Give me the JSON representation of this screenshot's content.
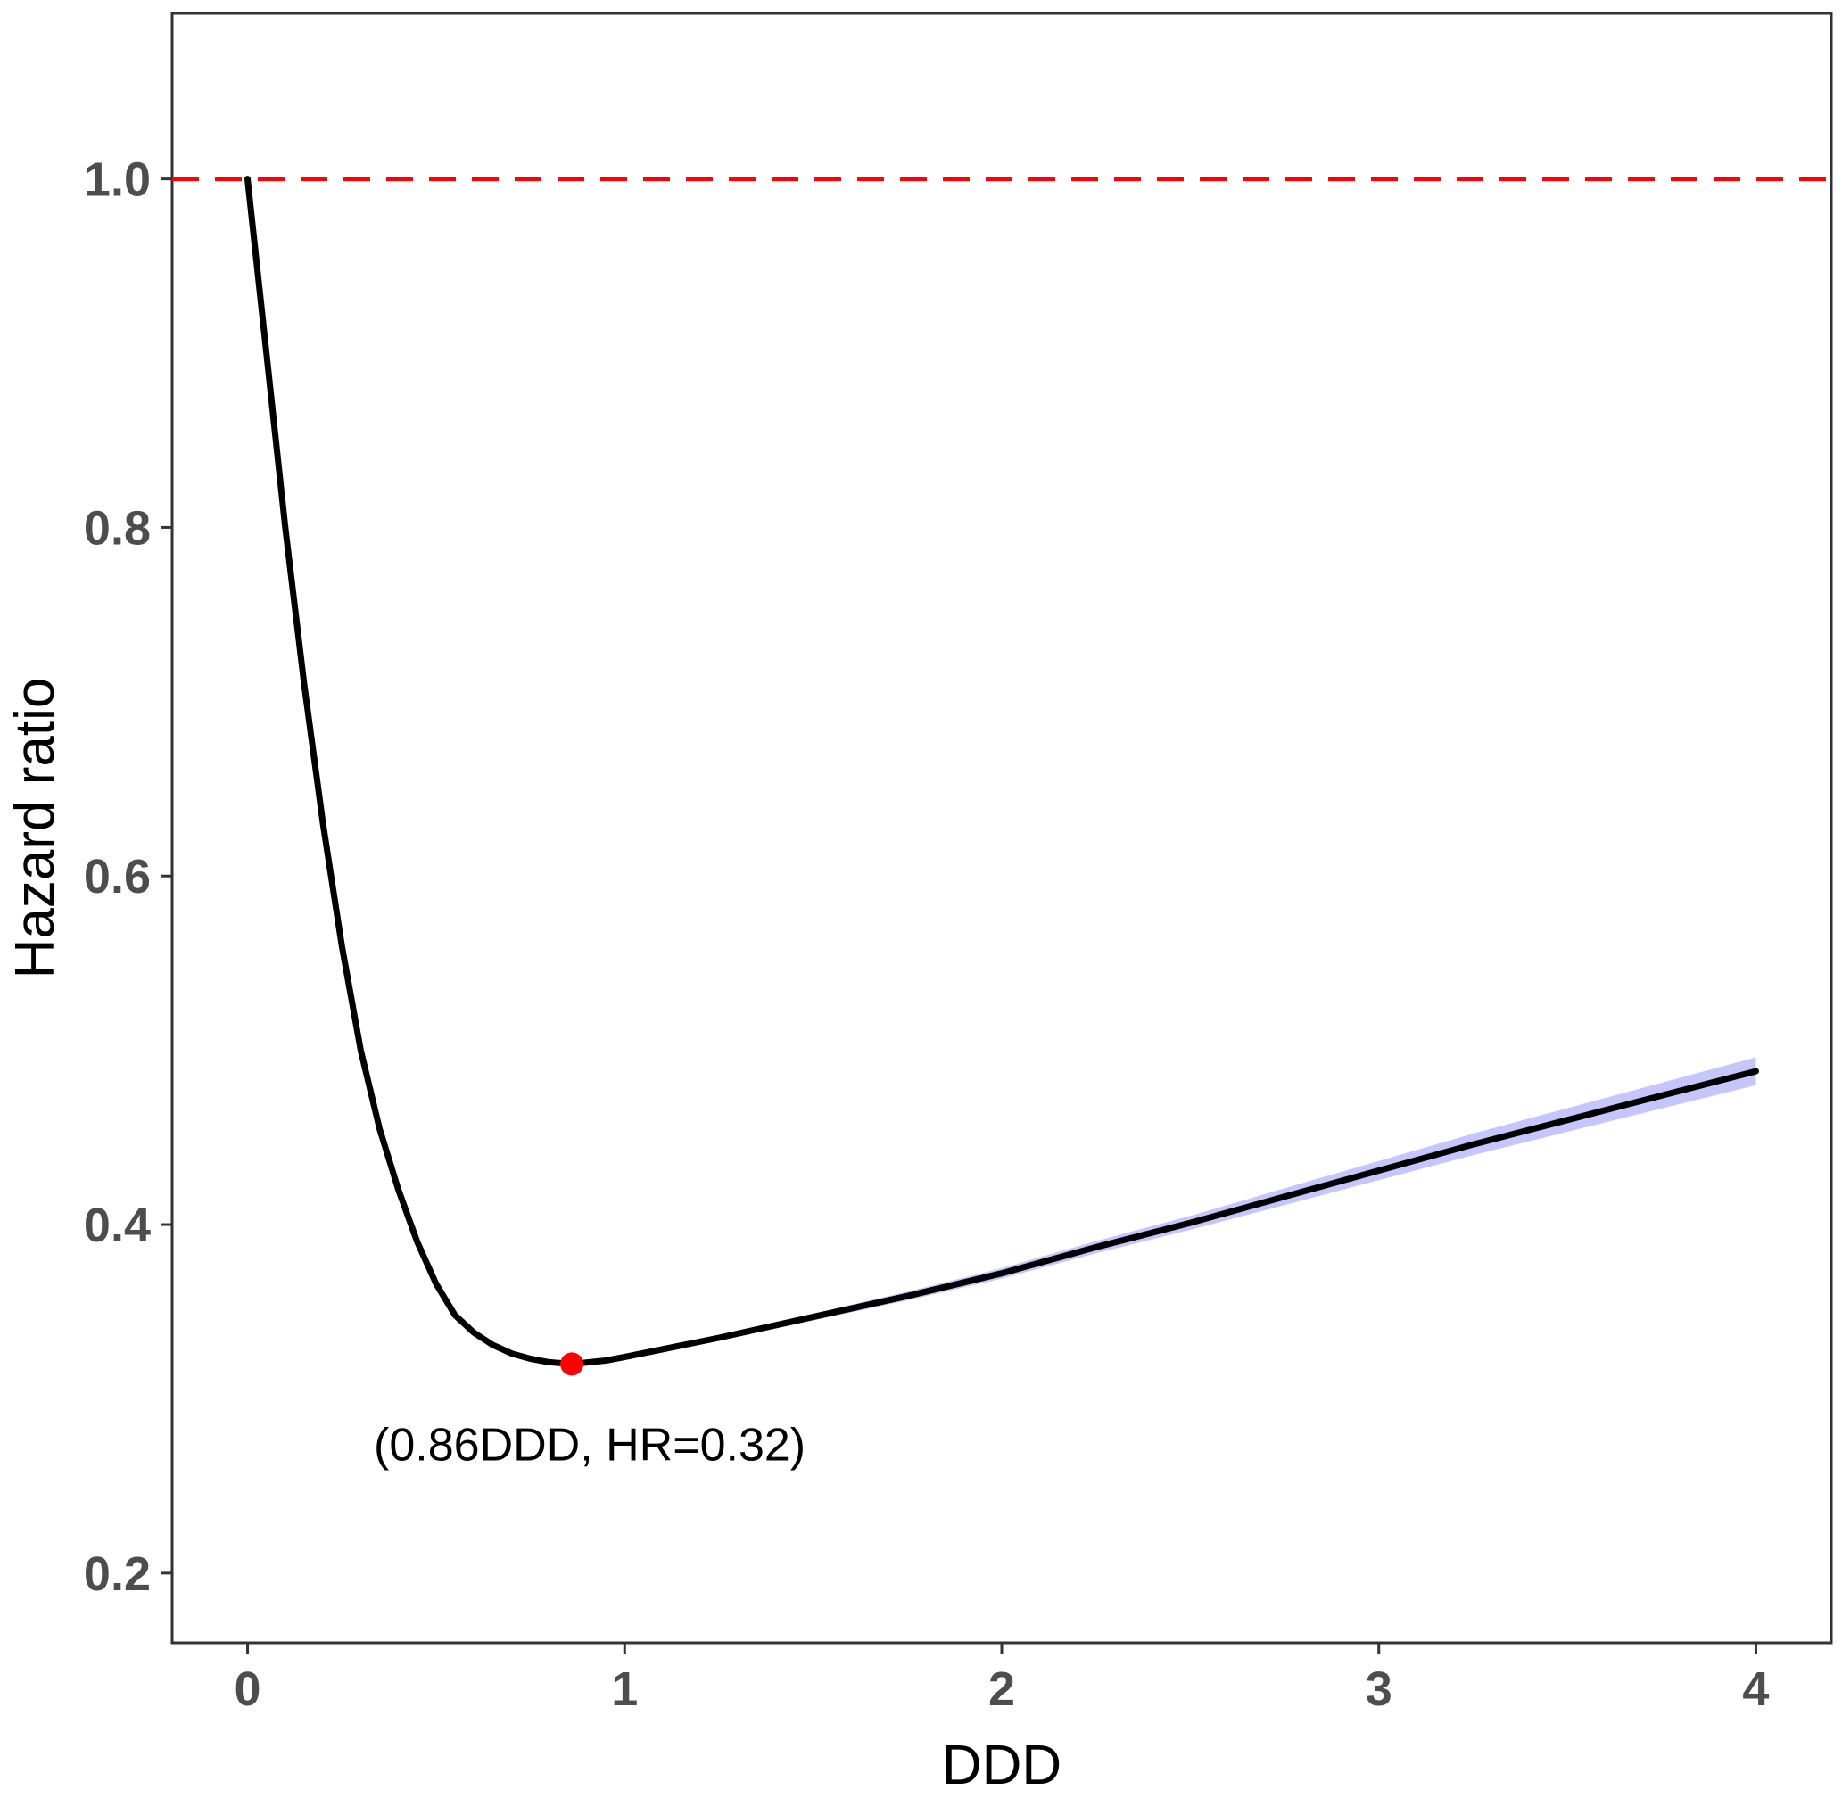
{
  "chart_data": {
    "type": "line",
    "title": "",
    "xlabel": "DDD",
    "ylabel": "Hazard ratio",
    "xlim": [
      -0.2,
      4.2
    ],
    "ylim": [
      0.16,
      1.095
    ],
    "x_ticks": [
      0,
      1,
      2,
      3,
      4
    ],
    "y_ticks": [
      0.2,
      0.4,
      0.6,
      0.8,
      1.0
    ],
    "x_tick_labels": [
      "0",
      "1",
      "2",
      "3",
      "4"
    ],
    "y_tick_labels": [
      "0.2",
      "0.4",
      "0.6",
      "0.8",
      "1.0"
    ],
    "grid": false,
    "legend": "none",
    "series": [
      {
        "x": [
          0,
          0.05,
          0.1,
          0.15,
          0.2,
          0.25,
          0.3,
          0.35,
          0.4,
          0.45,
          0.5,
          0.55,
          0.6,
          0.65,
          0.7,
          0.75,
          0.8,
          0.86,
          0.95,
          1.0,
          1.25,
          1.5,
          1.75,
          2.0,
          2.25,
          2.5,
          2.75,
          3.0,
          3.25,
          3.5,
          3.75,
          4.0
        ],
        "y": [
          1.0,
          0.9,
          0.8,
          0.71,
          0.63,
          0.56,
          0.5,
          0.455,
          0.42,
          0.39,
          0.366,
          0.348,
          0.338,
          0.331,
          0.326,
          0.323,
          0.321,
          0.32,
          0.322,
          0.324,
          0.335,
          0.347,
          0.359,
          0.372,
          0.387,
          0.401,
          0.416,
          0.431,
          0.446,
          0.46,
          0.474,
          0.488
        ],
        "ci_halfwidth": [
          0,
          0,
          0,
          0,
          0,
          0,
          0,
          0,
          0,
          0,
          0,
          0,
          0,
          0,
          0,
          0,
          0,
          0,
          0.0005,
          0.001,
          0.0015,
          0.002,
          0.0025,
          0.003,
          0.0035,
          0.004,
          0.0048,
          0.0055,
          0.0062,
          0.0068,
          0.0074,
          0.008
        ],
        "color": "#000000",
        "ci_color": "#b3b3ff"
      }
    ],
    "reference_line": {
      "y": 1.0,
      "style": "dashed",
      "color": "#ff0000"
    },
    "highlight_point": {
      "x": 0.86,
      "y": 0.32,
      "color": "#ff0000",
      "label": "(0.86DDD, HR=0.32)"
    }
  }
}
